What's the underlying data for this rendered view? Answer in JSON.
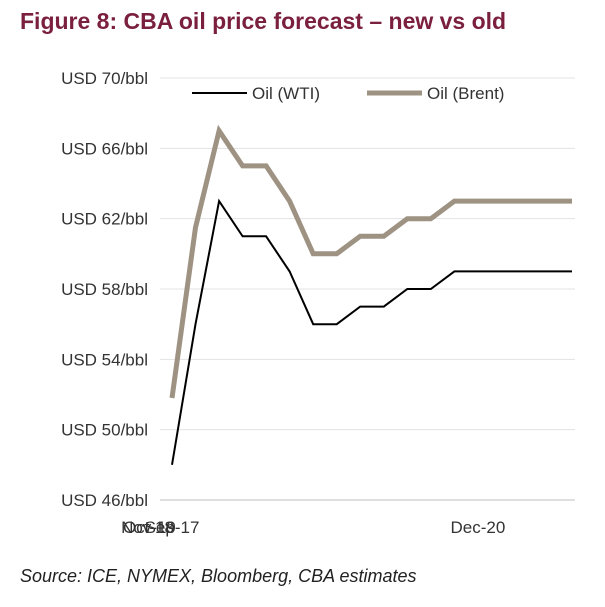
{
  "figure": {
    "title": "Figure 8: CBA oil price forecast – new vs old",
    "source": "Source: ICE, NYMEX, Bloomberg, CBA estimates"
  },
  "chart_data": {
    "type": "line",
    "title": "Figure 8: CBA oil price forecast – new vs old",
    "xlabel": "",
    "ylabel": "",
    "x_tick_labels": [
      "Sep-17",
      "Oct-18",
      "Nov-19",
      "Dec-20"
    ],
    "y_tick_labels": [
      "USD 46/bbl",
      "USD 50/bbl",
      "USD 54/bbl",
      "USD 58/bbl",
      "USD 62/bbl",
      "USD 66/bbl",
      "USD 70/bbl"
    ],
    "ylim": [
      46,
      70
    ],
    "grid": true,
    "legend_position": "top",
    "x": [
      "Sep-17",
      "Dec-17",
      "Mar-18",
      "Jun-18",
      "Sep-18",
      "Dec-18",
      "Mar-19",
      "Jun-19",
      "Sep-19",
      "Dec-19",
      "Mar-20",
      "Jun-20",
      "Sep-20",
      "Dec-20",
      "Mar-21",
      "Jun-21",
      "Sep-21",
      "Dec-21"
    ],
    "series": [
      {
        "name": "Oil (WTI)",
        "color": "#000000",
        "values": [
          48,
          56,
          63,
          61,
          61,
          59,
          56,
          56,
          57,
          57,
          58,
          58,
          59,
          59,
          59,
          59,
          59,
          59
        ]
      },
      {
        "name": "Oil (Brent)",
        "color": "#9e9283",
        "values": [
          51.8,
          61.5,
          67,
          65,
          65,
          63,
          60,
          60,
          61,
          61,
          62,
          62,
          63,
          63,
          63,
          63,
          63,
          63
        ]
      }
    ]
  }
}
